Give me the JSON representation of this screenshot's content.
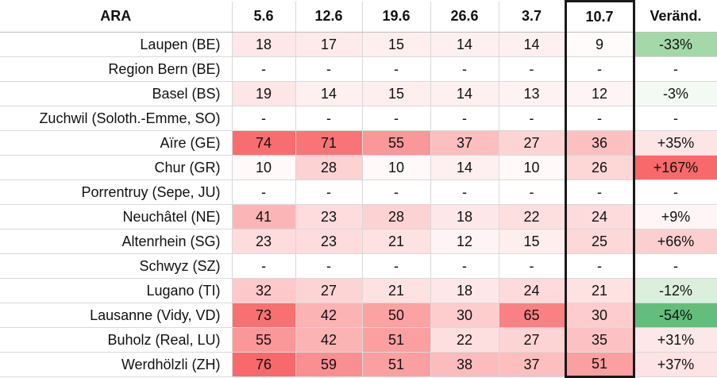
{
  "table": {
    "header": {
      "location": "ARA",
      "dates": [
        "5.6",
        "12.6",
        "19.6",
        "26.6",
        "3.7",
        "10.7"
      ],
      "change": "Veränd."
    },
    "rows": [
      {
        "name": "Laupen (BE)",
        "values": [
          "18",
          "17",
          "15",
          "14",
          "14",
          "9"
        ],
        "change": "-33%",
        "change_color": "#a3d9a8"
      },
      {
        "name": "Region Bern (BE)",
        "values": [
          "-",
          "-",
          "-",
          "-",
          "-",
          "-"
        ],
        "change": "-",
        "change_color": "#ffffff"
      },
      {
        "name": "Basel (BS)",
        "values": [
          "19",
          "14",
          "15",
          "14",
          "13",
          "12"
        ],
        "change": "-3%",
        "change_color": "#f3faf4"
      },
      {
        "name": "Zuchwil (Soloth.-Emme, SO)",
        "values": [
          "-",
          "-",
          "-",
          "-",
          "-",
          "-"
        ],
        "change": "-",
        "change_color": "#ffffff"
      },
      {
        "name": "Aïre (GE)",
        "values": [
          "74",
          "71",
          "55",
          "37",
          "27",
          "36"
        ],
        "change": "+35%",
        "change_color": "#fde5e6"
      },
      {
        "name": "Chur (GR)",
        "values": [
          "10",
          "28",
          "10",
          "14",
          "10",
          "26"
        ],
        "change": "+167%",
        "change_color": "#f8696b"
      },
      {
        "name": "Porrentruy (Sepe, JU)",
        "values": [
          "-",
          "-",
          "-",
          "-",
          "-",
          "-"
        ],
        "change": "-",
        "change_color": "#ffffff"
      },
      {
        "name": "Neuchâtel (NE)",
        "values": [
          "41",
          "23",
          "28",
          "18",
          "22",
          "24"
        ],
        "change": "+9%",
        "change_color": "#fff5f6"
      },
      {
        "name": "Altenrhein (SG)",
        "values": [
          "23",
          "23",
          "21",
          "12",
          "15",
          "25"
        ],
        "change": "+66%",
        "change_color": "#fbcfd0"
      },
      {
        "name": "Schwyz (SZ)",
        "values": [
          "-",
          "-",
          "-",
          "-",
          "-",
          "-"
        ],
        "change": "-",
        "change_color": "#ffffff"
      },
      {
        "name": "Lugano (TI)",
        "values": [
          "32",
          "27",
          "21",
          "18",
          "24",
          "21"
        ],
        "change": "-12%",
        "change_color": "#dcefdc"
      },
      {
        "name": "Lausanne (Vidy, VD)",
        "values": [
          "73",
          "42",
          "50",
          "30",
          "65",
          "30"
        ],
        "change": "-54%",
        "change_color": "#63be7b"
      },
      {
        "name": "Buholz (Real, LU)",
        "values": [
          "55",
          "42",
          "51",
          "22",
          "27",
          "35"
        ],
        "change": "+31%",
        "change_color": "#fde8e9"
      },
      {
        "name": "Werdhölzli (ZH)",
        "values": [
          "76",
          "59",
          "51",
          "38",
          "37",
          "51"
        ],
        "change": "+37%",
        "change_color": "#fde3e4"
      }
    ],
    "scale": {
      "min": 9,
      "max": 76,
      "low_color": "#fffbfb",
      "high_color": "#f8696b"
    }
  }
}
